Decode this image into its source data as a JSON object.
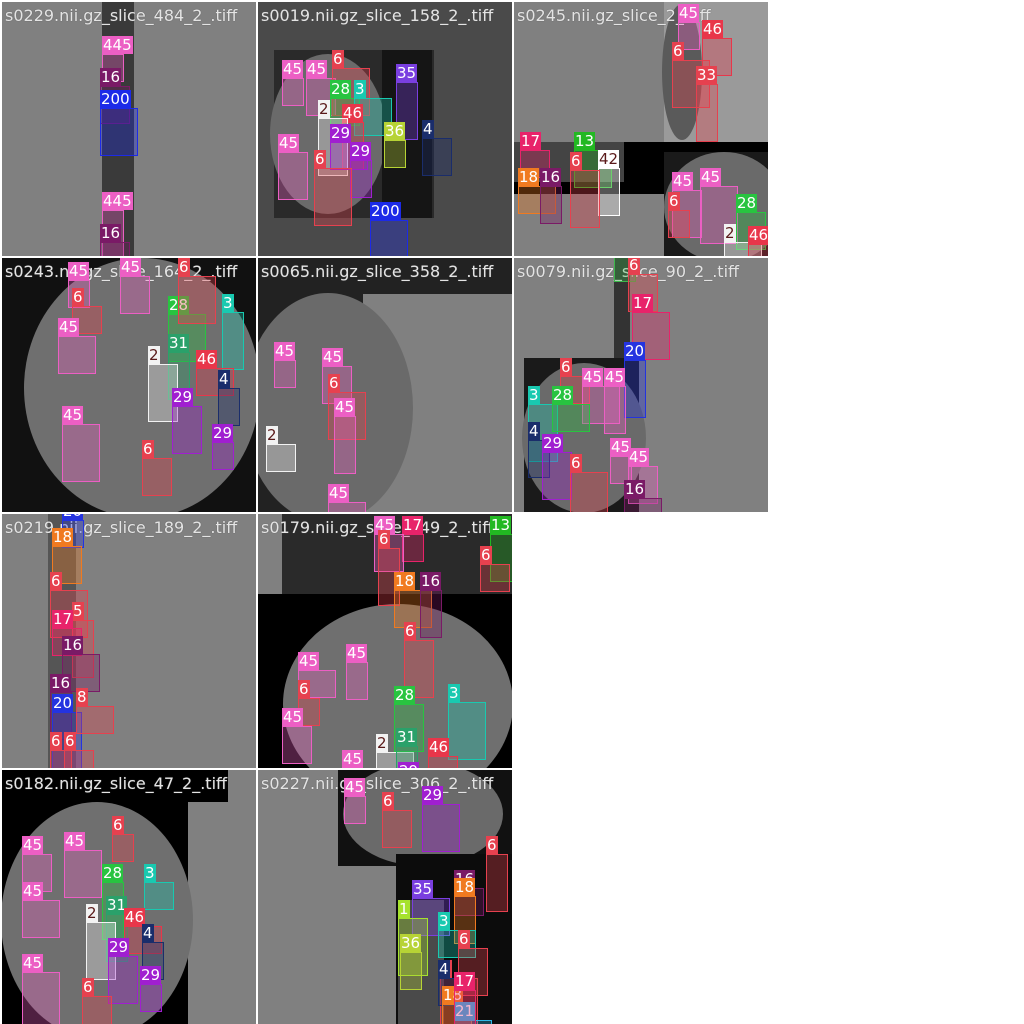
{
  "palette": {
    "1": "#a6e22e",
    "2": "#f2f2f2",
    "3": "#19c9b0",
    "4": "#1a2d6b",
    "6": "#e6414f",
    "13": "#22b822",
    "16": "#7a1a66",
    "17": "#e8236a",
    "18": "#f07a20",
    "20": "#2433e0",
    "21": "#2eb8e8",
    "28": "#28c440",
    "29": "#a01fd0",
    "31": "#2aa16a",
    "35": "#7a3fe0",
    "36": "#b7d335",
    "42": "#ffffff",
    "45": "#ec5fc4",
    "46": "#e8364a",
    "53": "#3bb84a",
    "200": "#1c2ae8"
  },
  "tiles": [
    {
      "title": "s0229.nii.gz_slice_484_2_.tiff",
      "labels": [
        "445",
        "16",
        "200",
        "445",
        "16"
      ]
    },
    {
      "title": "s0019.nii.gz_slice_158_2_.tiff",
      "labels": [
        "45",
        "45",
        "6",
        "35",
        "28",
        "3",
        "46",
        "2",
        "29",
        "29",
        "45",
        "6",
        "36",
        "4",
        "200"
      ]
    },
    {
      "title": "s0245.nii.gz_slice_2_.tiff",
      "labels": [
        "45",
        "46",
        "6",
        "33",
        "17",
        "13",
        "42",
        "6",
        "18",
        "16",
        "45",
        "45",
        "6",
        "28",
        "2",
        "46"
      ]
    },
    {
      "title": "s0243.nii.gz_slice_164_2_.tiff",
      "labels": [
        "45",
        "45",
        "28",
        "3",
        "6",
        "45",
        "31",
        "2",
        "46",
        "4",
        "29",
        "45",
        "29",
        "6",
        "6"
      ]
    },
    {
      "title": "s0065.nii.gz_slice_358_2_.tiff",
      "labels": [
        "45",
        "45",
        "6",
        "45",
        "2",
        "45"
      ]
    },
    {
      "title": "s0079.nii.gz_slice_90_2_.tiff",
      "labels": [
        "53",
        "6",
        "17",
        "20",
        "6",
        "45",
        "45",
        "3",
        "28",
        "4",
        "29",
        "6",
        "45",
        "45",
        "16"
      ]
    },
    {
      "title": "s0219.nii.gz_slice_189_2_.tiff",
      "labels": [
        "20",
        "18",
        "6",
        "5",
        "17",
        "16",
        "16",
        "20",
        "8",
        "6",
        "6"
      ]
    },
    {
      "title": "s0179.nii.gz_slice_349_2_.tiff",
      "labels": [
        "17",
        "45",
        "13",
        "6",
        "6",
        "18",
        "16",
        "6",
        "45",
        "45",
        "28",
        "3",
        "6",
        "45",
        "2",
        "31",
        "46",
        "29",
        "45"
      ]
    },
    {
      "title": "s0182.nii.gz_slice_47_2_.tiff",
      "labels": [
        "6",
        "45",
        "45",
        "28",
        "3",
        "45",
        "31",
        "2",
        "46",
        "4",
        "29",
        "45",
        "29",
        "6"
      ]
    },
    {
      "title": "s0227.nii.gz_slice_306_2_.tiff",
      "labels": [
        "45",
        "6",
        "29",
        "6",
        "16",
        "35",
        "18",
        "1",
        "3",
        "36",
        "6",
        "6",
        "4",
        "18",
        "21",
        "17"
      ]
    }
  ]
}
